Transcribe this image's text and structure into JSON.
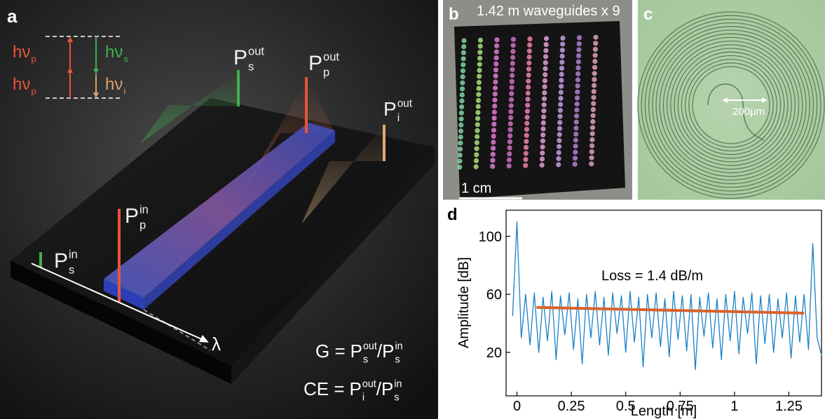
{
  "panel_a": {
    "label": "a",
    "energy_levels": [
      {
        "base": "hν",
        "sub": "p"
      },
      {
        "base": "hν",
        "sub": "p"
      },
      {
        "base": "hν",
        "sub": "s"
      },
      {
        "base": "hν",
        "sub": "i"
      }
    ],
    "powers": [
      {
        "base": "P",
        "sup": "out",
        "sub": "s"
      },
      {
        "base": "P",
        "sup": "out",
        "sub": "p"
      },
      {
        "base": "P",
        "sup": "out",
        "sub": "i"
      },
      {
        "base": "P",
        "sup": "in",
        "sub": "p"
      },
      {
        "base": "P",
        "sup": "in",
        "sub": "s"
      }
    ],
    "wavelength_axis": "λ",
    "equations": [
      {
        "lhs": "G =",
        "num": {
          "base": "P",
          "sup": "out",
          "sub": "s"
        },
        "slash": "/",
        "den": {
          "base": "P",
          "sup": "in",
          "sub": "s"
        }
      },
      {
        "lhs": "CE =",
        "num": {
          "base": "P",
          "sup": "out",
          "sub": "i"
        },
        "slash": "/",
        "den": {
          "base": "P",
          "sup": "in",
          "sub": "s"
        }
      }
    ]
  },
  "panel_b": {
    "label": "b",
    "caption": "1.42 m waveguides x 9",
    "scale_bar": "1 cm"
  },
  "panel_c": {
    "label": "c",
    "scale_bar": "200μm"
  },
  "chart_data": {
    "type": "line",
    "label": "d",
    "annotation": "Loss = 1.4 dB/m",
    "x_label": "Length [m]",
    "y_label": "Amplitude [dB]",
    "xlim": [
      -0.05,
      1.4
    ],
    "ylim": [
      -10,
      118
    ],
    "xticks": [
      0,
      0.25,
      0.5,
      0.75,
      1,
      1.25
    ],
    "yticks": [
      20,
      60,
      100
    ],
    "series": [
      {
        "color": "#1b80c8",
        "x": [
          -0.02,
          0,
          0.02,
          0.04,
          0.06,
          0.08,
          0.1,
          0.12,
          0.14,
          0.16,
          0.18,
          0.2,
          0.22,
          0.24,
          0.26,
          0.28,
          0.3,
          0.32,
          0.34,
          0.36,
          0.38,
          0.4,
          0.42,
          0.44,
          0.46,
          0.48,
          0.5,
          0.52,
          0.54,
          0.56,
          0.58,
          0.6,
          0.62,
          0.64,
          0.66,
          0.68,
          0.7,
          0.72,
          0.74,
          0.76,
          0.78,
          0.8,
          0.82,
          0.84,
          0.86,
          0.88,
          0.9,
          0.92,
          0.94,
          0.96,
          0.98,
          1,
          1.02,
          1.04,
          1.06,
          1.08,
          1.1,
          1.12,
          1.14,
          1.16,
          1.18,
          1.2,
          1.22,
          1.24,
          1.26,
          1.28,
          1.3,
          1.32,
          1.34,
          1.36,
          1.38,
          1.4
        ],
        "values": [
          45,
          110,
          30,
          60,
          25,
          61,
          20,
          58,
          28,
          62,
          15,
          59,
          32,
          61,
          22,
          57,
          12,
          60,
          30,
          62,
          25,
          58,
          18,
          61,
          33,
          59,
          20,
          62,
          27,
          58,
          10,
          60,
          30,
          61,
          24,
          57,
          17,
          62,
          29,
          59,
          21,
          60,
          8,
          58,
          31,
          61,
          23,
          57,
          15,
          60,
          28,
          62,
          19,
          58,
          33,
          61,
          12,
          59,
          26,
          60,
          20,
          57,
          30,
          61,
          16,
          59,
          27,
          60,
          22,
          95,
          30,
          18
        ]
      },
      {
        "color": "#d9622b",
        "x": [
          0.09,
          1.32
        ],
        "values": [
          51,
          47
        ]
      }
    ]
  }
}
